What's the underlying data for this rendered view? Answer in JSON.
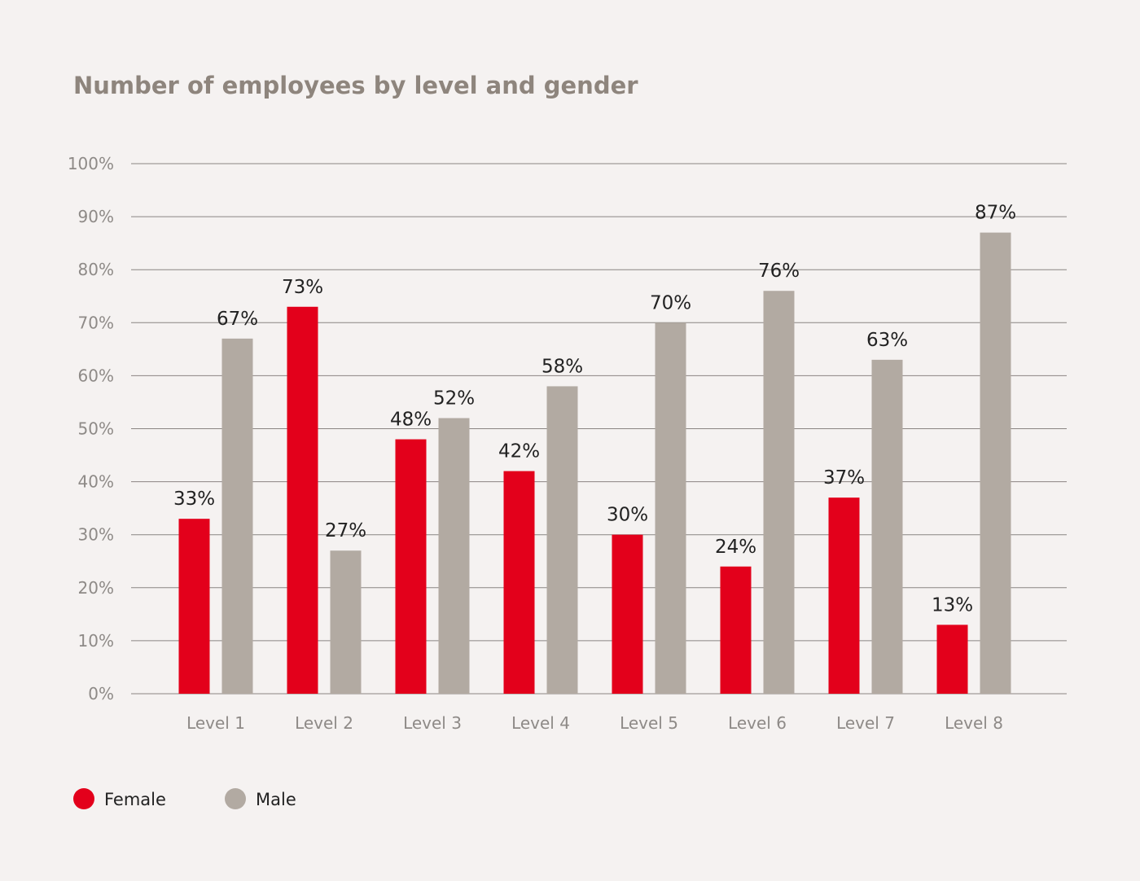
{
  "chart_data": {
    "type": "bar",
    "title": "Number of employees by level and gender",
    "xlabel": "",
    "ylabel": "",
    "ylim": [
      0,
      100
    ],
    "yticks": [
      "0%",
      "10%",
      "20%",
      "30%",
      "40%",
      "50%",
      "60%",
      "70%",
      "80%",
      "90%",
      "100%"
    ],
    "grid": true,
    "legend_position": "bottom-left",
    "categories": [
      "Level 1",
      "Level 2",
      "Level 3",
      "Level 4",
      "Level 5",
      "Level 6",
      "Level 7",
      "Level 8"
    ],
    "series": [
      {
        "name": "Female",
        "color": "#e3001b",
        "values": [
          33,
          73,
          48,
          42,
          30,
          24,
          37,
          13
        ]
      },
      {
        "name": "Male",
        "color": "#b2aaa2",
        "values": [
          67,
          27,
          52,
          58,
          70,
          76,
          63,
          87
        ]
      }
    ]
  }
}
